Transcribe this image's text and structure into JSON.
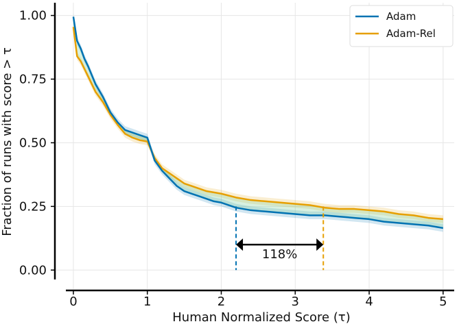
{
  "chart_data": {
    "type": "line",
    "title": "",
    "xlabel": "Human Normalized Score (τ)",
    "ylabel": "Fraction of runs with score > τ",
    "xlim": [
      -0.25,
      5.15
    ],
    "ylim": [
      -0.08,
      1.05
    ],
    "xticks": [
      0,
      1,
      2,
      3,
      4,
      5
    ],
    "xtick_labels": [
      "0",
      "1",
      "2",
      "3",
      "4",
      "5"
    ],
    "yticks": [
      0.0,
      0.25,
      0.5,
      0.75,
      1.0
    ],
    "ytick_labels": [
      "0.00",
      "0.25",
      "0.50",
      "0.75",
      "1.00"
    ],
    "grid": true,
    "legend_position": "top-right",
    "series": [
      {
        "name": "Adam",
        "color": "#0072B2",
        "x": [
          0.0,
          0.05,
          0.1,
          0.15,
          0.2,
          0.3,
          0.4,
          0.5,
          0.6,
          0.7,
          0.8,
          0.9,
          1.0,
          1.1,
          1.2,
          1.3,
          1.4,
          1.5,
          1.6,
          1.7,
          1.8,
          1.9,
          2.0,
          2.2,
          2.4,
          2.6,
          2.8,
          3.0,
          3.2,
          3.4,
          3.6,
          3.8,
          4.0,
          4.2,
          4.4,
          4.6,
          4.8,
          5.0
        ],
        "y": [
          0.995,
          0.9,
          0.87,
          0.83,
          0.8,
          0.73,
          0.68,
          0.62,
          0.58,
          0.55,
          0.54,
          0.53,
          0.52,
          0.43,
          0.39,
          0.36,
          0.33,
          0.31,
          0.3,
          0.29,
          0.28,
          0.27,
          0.265,
          0.245,
          0.235,
          0.23,
          0.225,
          0.22,
          0.215,
          0.215,
          0.21,
          0.205,
          0.2,
          0.19,
          0.185,
          0.18,
          0.175,
          0.165
        ]
      },
      {
        "name": "Adam-Rel",
        "color": "#E69F00",
        "x": [
          0.0,
          0.05,
          0.1,
          0.15,
          0.2,
          0.3,
          0.4,
          0.5,
          0.6,
          0.7,
          0.8,
          0.9,
          1.0,
          1.1,
          1.2,
          1.3,
          1.4,
          1.5,
          1.6,
          1.7,
          1.8,
          1.9,
          2.0,
          2.2,
          2.4,
          2.6,
          2.8,
          3.0,
          3.2,
          3.4,
          3.6,
          3.8,
          4.0,
          4.2,
          4.4,
          4.6,
          4.8,
          5.0
        ],
        "y": [
          0.955,
          0.84,
          0.82,
          0.79,
          0.76,
          0.7,
          0.66,
          0.61,
          0.57,
          0.535,
          0.52,
          0.51,
          0.505,
          0.44,
          0.4,
          0.38,
          0.36,
          0.34,
          0.33,
          0.32,
          0.31,
          0.305,
          0.3,
          0.285,
          0.275,
          0.27,
          0.265,
          0.26,
          0.255,
          0.245,
          0.24,
          0.24,
          0.235,
          0.23,
          0.22,
          0.215,
          0.205,
          0.2
        ]
      }
    ],
    "annotation": {
      "label": "118%",
      "x_start": 2.2,
      "x_end": 3.38,
      "arrow_y": 0.1,
      "adam_level": 0.25,
      "adamrel_level": 0.25
    }
  }
}
